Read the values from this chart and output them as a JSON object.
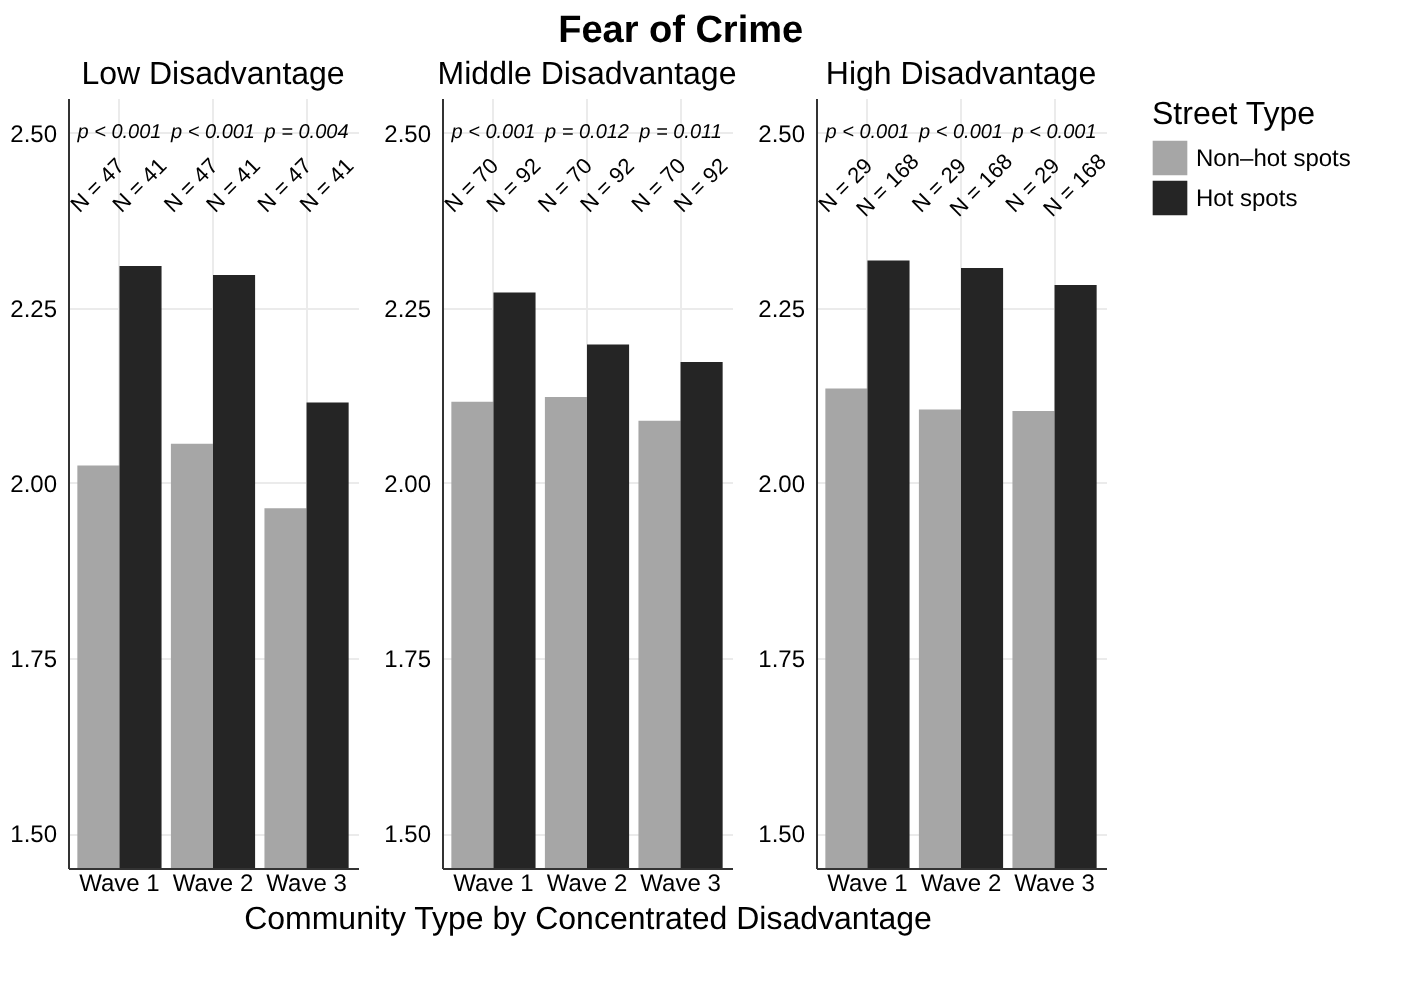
{
  "chart_data": [
    {
      "type": "bar",
      "subtitle": "Low Disadvantage",
      "categories": [
        "Wave 1",
        "Wave 2",
        "Wave 3"
      ],
      "series": [
        {
          "name": "Non–hot spots",
          "color": "#a6a6a6",
          "values": [
            2.025,
            2.056,
            1.964
          ]
        },
        {
          "name": "Hot spots",
          "color": "#252525",
          "values": [
            2.31,
            2.297,
            2.115
          ]
        }
      ],
      "ylim": [
        1.45,
        2.55
      ],
      "yticks": [
        {
          "value": 1.5,
          "label": "1.50"
        },
        {
          "value": 1.75,
          "label": "1.75"
        },
        {
          "value": 2.0,
          "label": "2.00"
        },
        {
          "value": 2.25,
          "label": "2.25"
        },
        {
          "value": 2.5,
          "label": "2.50"
        }
      ],
      "grid": true,
      "legend": "right",
      "annotations": [
        "p < 0.001",
        "N = 47",
        "N = 41",
        "p < 0.001",
        "N = 47",
        "N = 41",
        "p = 0.004",
        "N = 47",
        "N = 41"
      ]
    },
    {
      "type": "bar",
      "title": "Fear of Crime",
      "subtitle": "Middle Disadvantage",
      "xlabel": "Community Type by Concentrated Disadvantage",
      "categories": [
        "Wave 1",
        "Wave 2",
        "Wave 3"
      ],
      "series": [
        {
          "name": "Non–hot spots",
          "color": "#a6a6a6",
          "values": [
            2.116,
            2.123,
            2.089
          ]
        },
        {
          "name": "Hot spots",
          "color": "#252525",
          "values": [
            2.272,
            2.198,
            2.173
          ]
        }
      ],
      "ylim": [
        1.45,
        2.55
      ],
      "yticks": [
        {
          "value": 1.5,
          "label": "1.50"
        },
        {
          "value": 1.75,
          "label": "1.75"
        },
        {
          "value": 2.0,
          "label": "2.00"
        },
        {
          "value": 2.25,
          "label": "2.25"
        },
        {
          "value": 2.5,
          "label": "2.50"
        }
      ],
      "grid": true,
      "legend": "right",
      "annotations": [
        "p < 0.001",
        "N = 70",
        "N = 92",
        "p = 0.012",
        "N = 70",
        "N = 92",
        "p = 0.011",
        "N = 70",
        "N = 92"
      ]
    },
    {
      "type": "bar",
      "subtitle": "High Disadvantage",
      "categories": [
        "Wave 1",
        "Wave 2",
        "Wave 3"
      ],
      "series": [
        {
          "name": "Non–hot spots",
          "color": "#a6a6a6",
          "values": [
            2.135,
            2.105,
            2.103
          ]
        },
        {
          "name": "Hot spots",
          "color": "#252525",
          "values": [
            2.318,
            2.307,
            2.283
          ]
        }
      ],
      "ylim": [
        1.45,
        2.55
      ],
      "yticks": [
        {
          "value": 1.5,
          "label": "1.50"
        },
        {
          "value": 1.75,
          "label": "1.75"
        },
        {
          "value": 2.0,
          "label": "2.00"
        },
        {
          "value": 2.25,
          "label": "2.25"
        },
        {
          "value": 2.5,
          "label": "2.50"
        }
      ],
      "grid": true,
      "legend": "right",
      "legend_title": "Street Type",
      "annotations": [
        "p < 0.001",
        "N = 29",
        "N = 168",
        "p < 0.001",
        "N = 29",
        "N = 168",
        "p < 0.001",
        "N = 29",
        "N = 168"
      ]
    }
  ]
}
